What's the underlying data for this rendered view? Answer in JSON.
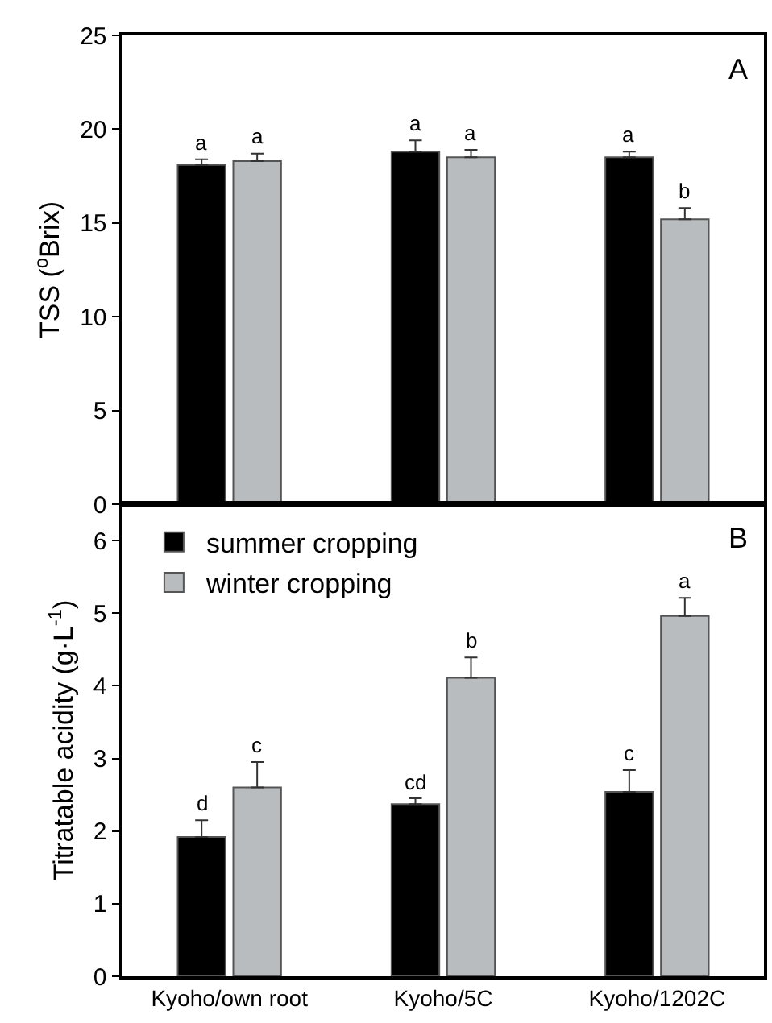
{
  "chart_data": [
    {
      "type": "bar",
      "ylabel": "TSS ($^{o}$Brix)",
      "categories": [
        null,
        null,
        null
      ],
      "ylim": [
        0,
        25
      ],
      "yticks": [
        0,
        5,
        10,
        15,
        20,
        25
      ],
      "tick_labels": "y",
      "grid": false,
      "legend": false,
      "annotations": [
        "A"
      ],
      "series": [
        {
          "color": "#000000",
          "values": [
            18.1,
            18.8,
            18.5
          ],
          "errors": [
            [
              18.1,
              18.4
            ],
            [
              18.8,
              19.4
            ],
            [
              18.5,
              18.8
            ]
          ],
          "value_labels": [
            "a",
            "a",
            "a"
          ]
        },
        {
          "color": "#b8bcbe",
          "values": [
            18.3,
            18.5,
            15.2
          ],
          "errors": [
            [
              18.3,
              18.7
            ],
            [
              18.5,
              18.9
            ],
            [
              15.2,
              15.8
            ]
          ],
          "value_labels": [
            "a",
            "a",
            "b"
          ]
        }
      ]
    },
    {
      "type": "bar",
      "ylabel": "Titratable acidity (g·L$^{-1}$)",
      "categories": [
        "Kyoho/own root",
        "Kyoho/5C",
        "Kyoho/1202C"
      ],
      "ylim": [
        0,
        6.5
      ],
      "yticks": [
        0,
        1,
        2,
        3,
        4,
        5,
        6
      ],
      "grid": false,
      "legend": "top left",
      "annotations": [
        "B"
      ],
      "series": [
        {
          "name": "summer cropping",
          "color": "#000000",
          "values": [
            1.92,
            2.37,
            2.54
          ],
          "errors": [
            [
              1.92,
              2.15
            ],
            [
              2.37,
              2.45
            ],
            [
              2.54,
              2.84
            ]
          ],
          "value_labels": [
            "d",
            "cd",
            "c"
          ]
        },
        {
          "name": "winter cropping",
          "color": "#b8bcbe",
          "values": [
            2.6,
            4.11,
            4.96
          ],
          "errors": [
            [
              2.6,
              2.95
            ],
            [
              4.11,
              4.39
            ],
            [
              4.96,
              5.21
            ]
          ],
          "value_labels": [
            "c",
            "b",
            "a"
          ]
        }
      ]
    }
  ]
}
